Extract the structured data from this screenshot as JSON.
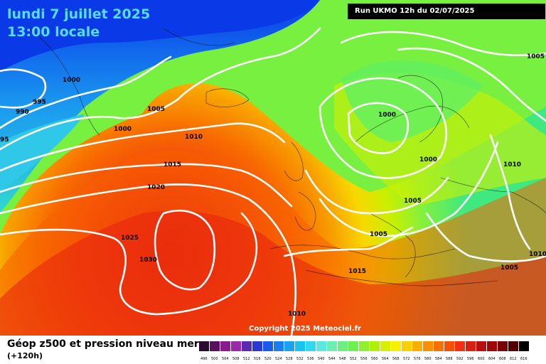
{
  "title": {
    "date": "lundi 7 juillet 2025",
    "time": "13:00 locale"
  },
  "run_info": "Run UKMO 12h du 02/07/2025",
  "copyright": "Copyright 2025 Meteociel.fr",
  "footer": {
    "title": "Géop z500 et pression niveau mer",
    "subtitle": "(+120h)"
  },
  "legend": {
    "ticks": [
      "496",
      "500",
      "504",
      "508",
      "512",
      "516",
      "520",
      "524",
      "528",
      "532",
      "536",
      "540",
      "544",
      "548",
      "552",
      "556",
      "560",
      "564",
      "568",
      "572",
      "576",
      "580",
      "584",
      "588",
      "592",
      "596",
      "600",
      "604",
      "608",
      "612",
      "616"
    ],
    "colors": [
      "#2a0a2e",
      "#5a1060",
      "#8b1a8f",
      "#9a2aa8",
      "#5a2ab0",
      "#2a3ad0",
      "#1a5ae8",
      "#1a7ef0",
      "#1aa2f0",
      "#1ac2f0",
      "#30d8f0",
      "#5ae8e0",
      "#6af0b0",
      "#6af080",
      "#70f050",
      "#90f030",
      "#b0f000",
      "#d8f000",
      "#f8f000",
      "#f8d000",
      "#f8b000",
      "#f89000",
      "#f87000",
      "#f85000",
      "#f03010",
      "#d82010",
      "#b81010",
      "#a00808",
      "#780404",
      "#500000",
      "#000000"
    ]
  },
  "isobars": [
    {
      "label": "1000"
    },
    {
      "label": "1005"
    },
    {
      "label": "1000"
    },
    {
      "label": "990"
    },
    {
      "label": "995"
    },
    {
      "label": "95"
    },
    {
      "label": "1010"
    },
    {
      "label": "1015"
    },
    {
      "label": "1020"
    },
    {
      "label": "1025"
    },
    {
      "label": "1030"
    },
    {
      "label": "1000"
    },
    {
      "label": "1000"
    },
    {
      "label": "1005"
    },
    {
      "label": "1005"
    },
    {
      "label": "1005"
    },
    {
      "label": "1015"
    },
    {
      "label": "1010"
    },
    {
      "label": "1010"
    },
    {
      "label": "1005"
    },
    {
      "label": "1010"
    }
  ]
}
